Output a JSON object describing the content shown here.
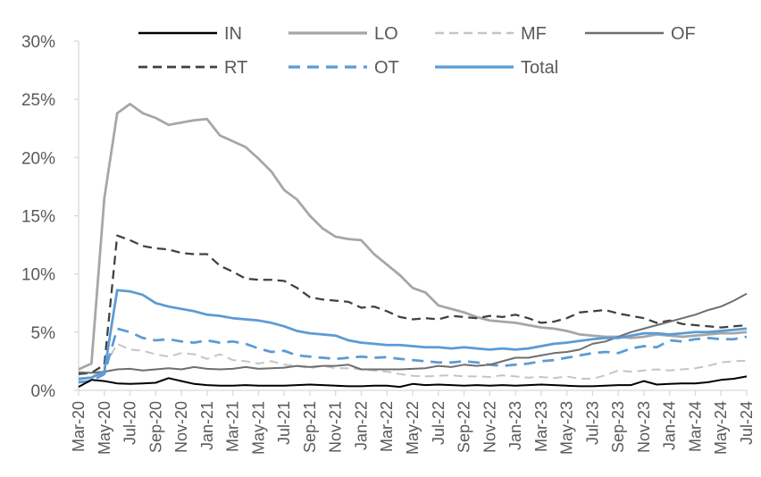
{
  "chart_data": {
    "type": "line",
    "title": "",
    "xlabel": "",
    "ylabel": "",
    "grid": false,
    "legend_position": "top",
    "ylim": [
      0,
      30
    ],
    "ytick_labels": [
      "0%",
      "5%",
      "10%",
      "15%",
      "20%",
      "25%",
      "30%"
    ],
    "ytick_values": [
      0,
      5,
      10,
      15,
      20,
      25,
      30
    ],
    "x_tick_step": 2,
    "x": [
      "Mar-20",
      "Apr-20",
      "May-20",
      "Jun-20",
      "Jul-20",
      "Aug-20",
      "Sep-20",
      "Oct-20",
      "Nov-20",
      "Dec-20",
      "Jan-21",
      "Feb-21",
      "Mar-21",
      "Apr-21",
      "May-21",
      "Jun-21",
      "Jul-21",
      "Aug-21",
      "Sep-21",
      "Oct-21",
      "Nov-21",
      "Dec-21",
      "Jan-22",
      "Feb-22",
      "Mar-22",
      "Apr-22",
      "May-22",
      "Jun-22",
      "Jul-22",
      "Aug-22",
      "Sep-22",
      "Oct-22",
      "Nov-22",
      "Dec-22",
      "Jan-23",
      "Feb-23",
      "Mar-23",
      "Apr-23",
      "May-23",
      "Jun-23",
      "Jul-23",
      "Aug-23",
      "Sep-23",
      "Oct-23",
      "Nov-23",
      "Dec-23",
      "Jan-24",
      "Feb-24",
      "Mar-24",
      "Apr-24",
      "May-24",
      "Jun-24",
      "Jul-24"
    ],
    "series": [
      {
        "name": "IN",
        "color": "#000000",
        "style": "solid",
        "width": 2,
        "values": [
          0.3,
          0.9,
          0.8,
          0.6,
          0.55,
          0.6,
          0.65,
          1.05,
          0.8,
          0.55,
          0.45,
          0.4,
          0.4,
          0.45,
          0.4,
          0.4,
          0.4,
          0.45,
          0.5,
          0.45,
          0.4,
          0.35,
          0.35,
          0.4,
          0.4,
          0.3,
          0.55,
          0.45,
          0.5,
          0.45,
          0.4,
          0.45,
          0.4,
          0.45,
          0.4,
          0.45,
          0.5,
          0.45,
          0.4,
          0.35,
          0.35,
          0.4,
          0.45,
          0.45,
          0.8,
          0.5,
          0.55,
          0.6,
          0.6,
          0.7,
          0.9,
          1.0,
          1.2
        ]
      },
      {
        "name": "LO",
        "color": "#A6A6A6",
        "style": "solid",
        "width": 2.75,
        "values": [
          1.8,
          2.3,
          16.5,
          23.8,
          24.6,
          23.8,
          23.4,
          22.8,
          23.0,
          23.2,
          23.3,
          21.9,
          21.4,
          20.9,
          19.9,
          18.8,
          17.2,
          16.4,
          15.0,
          13.9,
          13.2,
          13.0,
          12.9,
          11.7,
          10.8,
          9.9,
          8.8,
          8.4,
          7.3,
          7.0,
          6.7,
          6.3,
          6.0,
          5.9,
          5.8,
          5.6,
          5.4,
          5.3,
          5.1,
          4.8,
          4.7,
          4.6,
          4.6,
          4.5,
          4.6,
          4.8,
          4.7,
          4.6,
          4.7,
          4.8,
          4.9,
          4.9,
          5.0
        ]
      },
      {
        "name": "MF",
        "color": "#C5C5C5",
        "style": "dashed",
        "width": 2,
        "values": [
          0.9,
          1.1,
          2.0,
          4.0,
          3.5,
          3.4,
          3.1,
          2.9,
          3.2,
          3.1,
          2.7,
          3.1,
          2.6,
          2.5,
          2.3,
          2.5,
          2.2,
          2.1,
          1.9,
          2.1,
          1.9,
          1.9,
          1.8,
          1.7,
          1.6,
          1.4,
          1.25,
          1.2,
          1.25,
          1.3,
          1.2,
          1.2,
          1.15,
          1.3,
          1.2,
          1.1,
          1.15,
          1.05,
          1.2,
          1.0,
          1.0,
          1.3,
          1.7,
          1.6,
          1.7,
          1.8,
          1.7,
          1.8,
          1.9,
          2.1,
          2.4,
          2.5,
          2.55
        ]
      },
      {
        "name": "OF",
        "color": "#6E6E6E",
        "style": "solid",
        "width": 2,
        "values": [
          1.55,
          1.5,
          1.6,
          1.8,
          1.85,
          1.7,
          1.8,
          1.9,
          1.8,
          2.0,
          1.85,
          1.8,
          1.85,
          2.0,
          1.85,
          1.9,
          1.95,
          2.1,
          2.0,
          2.1,
          2.1,
          2.2,
          1.8,
          1.8,
          1.8,
          1.8,
          1.85,
          1.9,
          2.1,
          2.0,
          2.2,
          2.1,
          2.2,
          2.5,
          2.8,
          2.8,
          3.0,
          3.2,
          3.3,
          3.5,
          4.0,
          4.2,
          4.6,
          5.0,
          5.3,
          5.6,
          5.9,
          6.2,
          6.5,
          6.9,
          7.2,
          7.7,
          8.3
        ]
      },
      {
        "name": "RT",
        "color": "#404040",
        "style": "dashed",
        "width": 2.25,
        "values": [
          1.4,
          1.5,
          2.2,
          13.3,
          12.9,
          12.4,
          12.2,
          12.1,
          11.8,
          11.7,
          11.7,
          10.7,
          10.2,
          9.6,
          9.5,
          9.5,
          9.4,
          8.8,
          8.0,
          7.8,
          7.7,
          7.6,
          7.1,
          7.2,
          6.8,
          6.3,
          6.1,
          6.2,
          6.1,
          6.4,
          6.3,
          6.2,
          6.4,
          6.3,
          6.5,
          6.2,
          5.8,
          5.9,
          6.2,
          6.7,
          6.8,
          6.9,
          6.6,
          6.4,
          6.2,
          5.8,
          6.0,
          5.7,
          5.6,
          5.5,
          5.4,
          5.5,
          5.6
        ]
      },
      {
        "name": "OT",
        "color": "#5B9BD5",
        "style": "dashed",
        "width": 2.75,
        "values": [
          0.7,
          0.8,
          1.4,
          5.3,
          5.0,
          4.5,
          4.3,
          4.4,
          4.2,
          4.1,
          4.3,
          4.1,
          4.2,
          4.0,
          3.6,
          3.3,
          3.4,
          3.0,
          2.9,
          2.8,
          2.7,
          2.8,
          2.9,
          2.8,
          2.85,
          2.7,
          2.6,
          2.5,
          2.4,
          2.4,
          2.5,
          2.4,
          2.2,
          2.1,
          2.2,
          2.3,
          2.5,
          2.6,
          2.8,
          3.0,
          3.2,
          3.3,
          3.2,
          3.6,
          3.8,
          3.7,
          4.3,
          4.2,
          4.4,
          4.5,
          4.4,
          4.4,
          4.6
        ]
      },
      {
        "name": "Total",
        "color": "#5B9BD5",
        "style": "solid",
        "width": 2.75,
        "values": [
          1.0,
          1.1,
          1.6,
          8.6,
          8.5,
          8.2,
          7.5,
          7.2,
          7.0,
          6.8,
          6.5,
          6.4,
          6.2,
          6.1,
          6.0,
          5.8,
          5.5,
          5.1,
          4.9,
          4.8,
          4.7,
          4.3,
          4.1,
          4.0,
          3.9,
          3.9,
          3.8,
          3.7,
          3.7,
          3.6,
          3.7,
          3.6,
          3.5,
          3.6,
          3.5,
          3.6,
          3.8,
          4.0,
          4.1,
          4.25,
          4.4,
          4.5,
          4.5,
          4.7,
          4.9,
          4.9,
          4.8,
          4.9,
          5.0,
          5.0,
          5.1,
          5.2,
          5.3
        ]
      }
    ],
    "legend_rows": [
      [
        "IN",
        "LO",
        "MF",
        "OF"
      ],
      [
        "RT",
        "OT",
        "Total"
      ]
    ]
  },
  "colors": {
    "axis_line": "#D9D9D9",
    "tick_mark": "#D9D9D9",
    "axis_text": "#595959",
    "accent_blue": "#5B9BD5"
  }
}
